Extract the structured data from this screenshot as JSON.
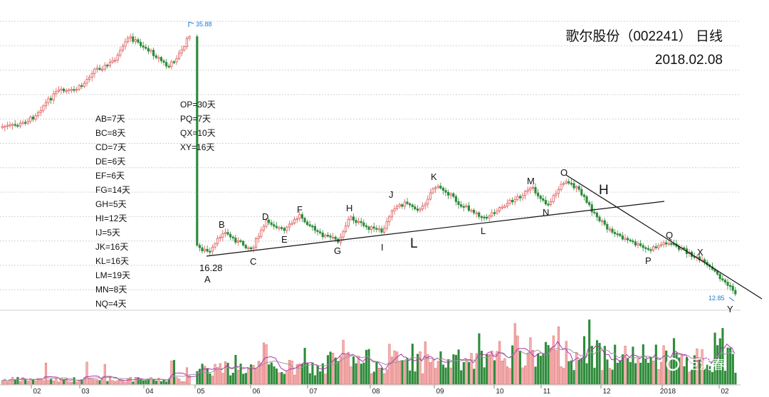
{
  "title": {
    "line1": "歌尔股份（002241） 日线",
    "line2": "2018.02.08"
  },
  "watermark": "巨洗春",
  "colors": {
    "up": "#e05a5a",
    "down": "#2e8b3a",
    "trendline": "#111111",
    "ma1": "#b42fb4",
    "ma2": "#999999",
    "tag": "#1a7bd6"
  },
  "chart_data": {
    "type": "candlestick",
    "subtype": "daily-kline-with-volume",
    "price_high_label": "35.88",
    "price_low_label": "12.85",
    "point_a_value": "16.28",
    "x_ticks": [
      "02",
      "03",
      "04",
      "05",
      "06",
      "07",
      "08",
      "09",
      "10",
      "11",
      "12",
      "2018",
      "02"
    ],
    "points": [
      {
        "label": "A",
        "value": null
      },
      {
        "label": "B"
      },
      {
        "label": "C"
      },
      {
        "label": "D"
      },
      {
        "label": "E"
      },
      {
        "label": "F"
      },
      {
        "label": "G"
      },
      {
        "label": "H"
      },
      {
        "label": "I"
      },
      {
        "label": "J"
      },
      {
        "label": "K"
      },
      {
        "label": "L"
      },
      {
        "label": "M"
      },
      {
        "label": "N"
      },
      {
        "label": "O"
      },
      {
        "label": "P"
      },
      {
        "label": "Q"
      },
      {
        "label": "X"
      },
      {
        "label": "Y"
      }
    ],
    "big_labels": [
      "L",
      "H"
    ],
    "durations_left": [
      "AB=7天",
      "BC=8天",
      "CD=7天",
      "DE=6天",
      "EF=6天",
      "FG=14天",
      "GH=5天",
      "HI=12天",
      "IJ=5天",
      "JK=16天",
      "KL=16天",
      "LM=19天",
      "MN=8天",
      "NQ=4天"
    ],
    "durations_right": [
      "OP=30天",
      "PQ=7天",
      "QX=10天",
      "XY=16天"
    ],
    "trendlines": [
      {
        "name": "neckline",
        "from": "A",
        "to": "after-N"
      },
      {
        "name": "downtrend",
        "from": "O",
        "to": "after-Y"
      }
    ],
    "grid": true,
    "legend": "none"
  }
}
